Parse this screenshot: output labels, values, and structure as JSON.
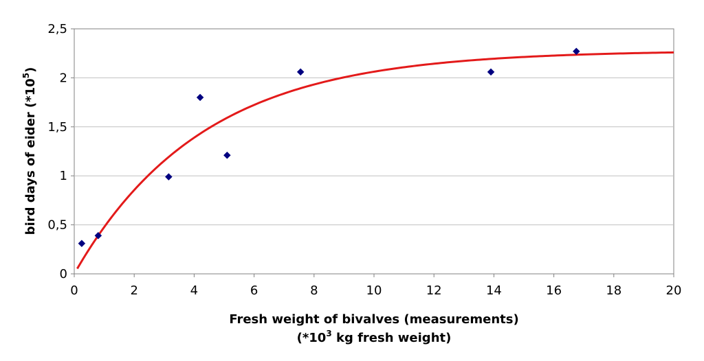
{
  "chart_data": {
    "type": "scatter",
    "title": "",
    "xlabel": "Fresh weight of bivalves (measurements)",
    "xlabel_line2_prefix": "(*10",
    "xlabel_line2_sup": "3",
    "xlabel_line2_suffix": " kg fresh weight)",
    "ylabel_prefix": "bird days of eider (*10",
    "ylabel_sup": "5",
    "ylabel_suffix": ")",
    "xlim": [
      0,
      20
    ],
    "ylim": [
      0,
      2.5
    ],
    "x_ticks": [
      "0",
      "2",
      "4",
      "6",
      "8",
      "10",
      "12",
      "14",
      "16",
      "18",
      "20"
    ],
    "y_ticks": [
      "0",
      "0,5",
      "1",
      "1,5",
      "2",
      "2,5"
    ],
    "grid": "horizontal",
    "legend": "none",
    "series": [
      {
        "kind": "scatter",
        "marker": "diamond",
        "color": "#000080",
        "x": [
          0.25,
          0.8,
          3.15,
          4.2,
          5.1,
          7.55,
          13.9,
          16.75
        ],
        "y": [
          0.31,
          0.39,
          0.99,
          1.8,
          1.21,
          2.06,
          2.06,
          2.27
        ]
      },
      {
        "kind": "line",
        "color": "#e31a1a",
        "x_range": [
          0.1,
          20
        ],
        "curve": {
          "form": "ymax*(1-exp(-k*x))",
          "ymax": 2.28,
          "k": 0.235
        }
      }
    ]
  }
}
